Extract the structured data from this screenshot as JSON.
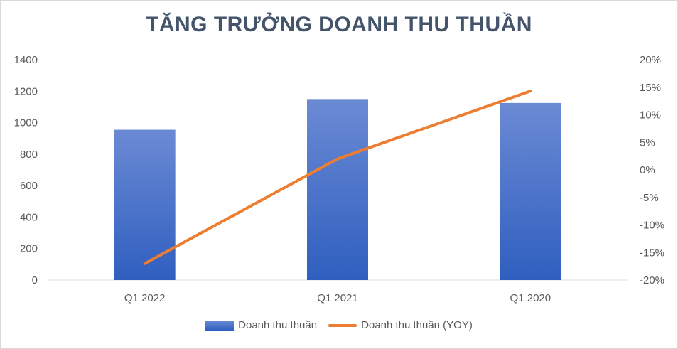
{
  "chart_data": {
    "type": "bar",
    "title": "TĂNG TRƯỞNG DOANH THU THUẦN",
    "categories": [
      "Q1 2022",
      "Q1 2021",
      "Q1 2020"
    ],
    "series": [
      {
        "name": "Doanh thu thuần",
        "type": "bar",
        "axis": "left",
        "values": [
          955,
          1150,
          1125
        ]
      },
      {
        "name": "Doanh thu thuần (YOY)",
        "type": "line",
        "axis": "right",
        "values": [
          -17,
          2,
          14.3
        ]
      }
    ],
    "ylim_left": [
      0,
      1400
    ],
    "yticks_left": [
      "0",
      "200",
      "400",
      "600",
      "800",
      "1000",
      "1200",
      "1400"
    ],
    "ylim_right": [
      -20,
      20
    ],
    "yticks_right": [
      "-20%",
      "-15%",
      "-10%",
      "-5%",
      "0%",
      "5%",
      "10%",
      "15%",
      "20%"
    ],
    "legend_position": "bottom",
    "grid": false,
    "colors": {
      "bar_top": "#6b8ad4",
      "bar_bottom": "#2f5fbf",
      "line": "#ed7d31",
      "title": "#44546a",
      "text": "#595959",
      "axis": "#d9d9d9"
    }
  }
}
